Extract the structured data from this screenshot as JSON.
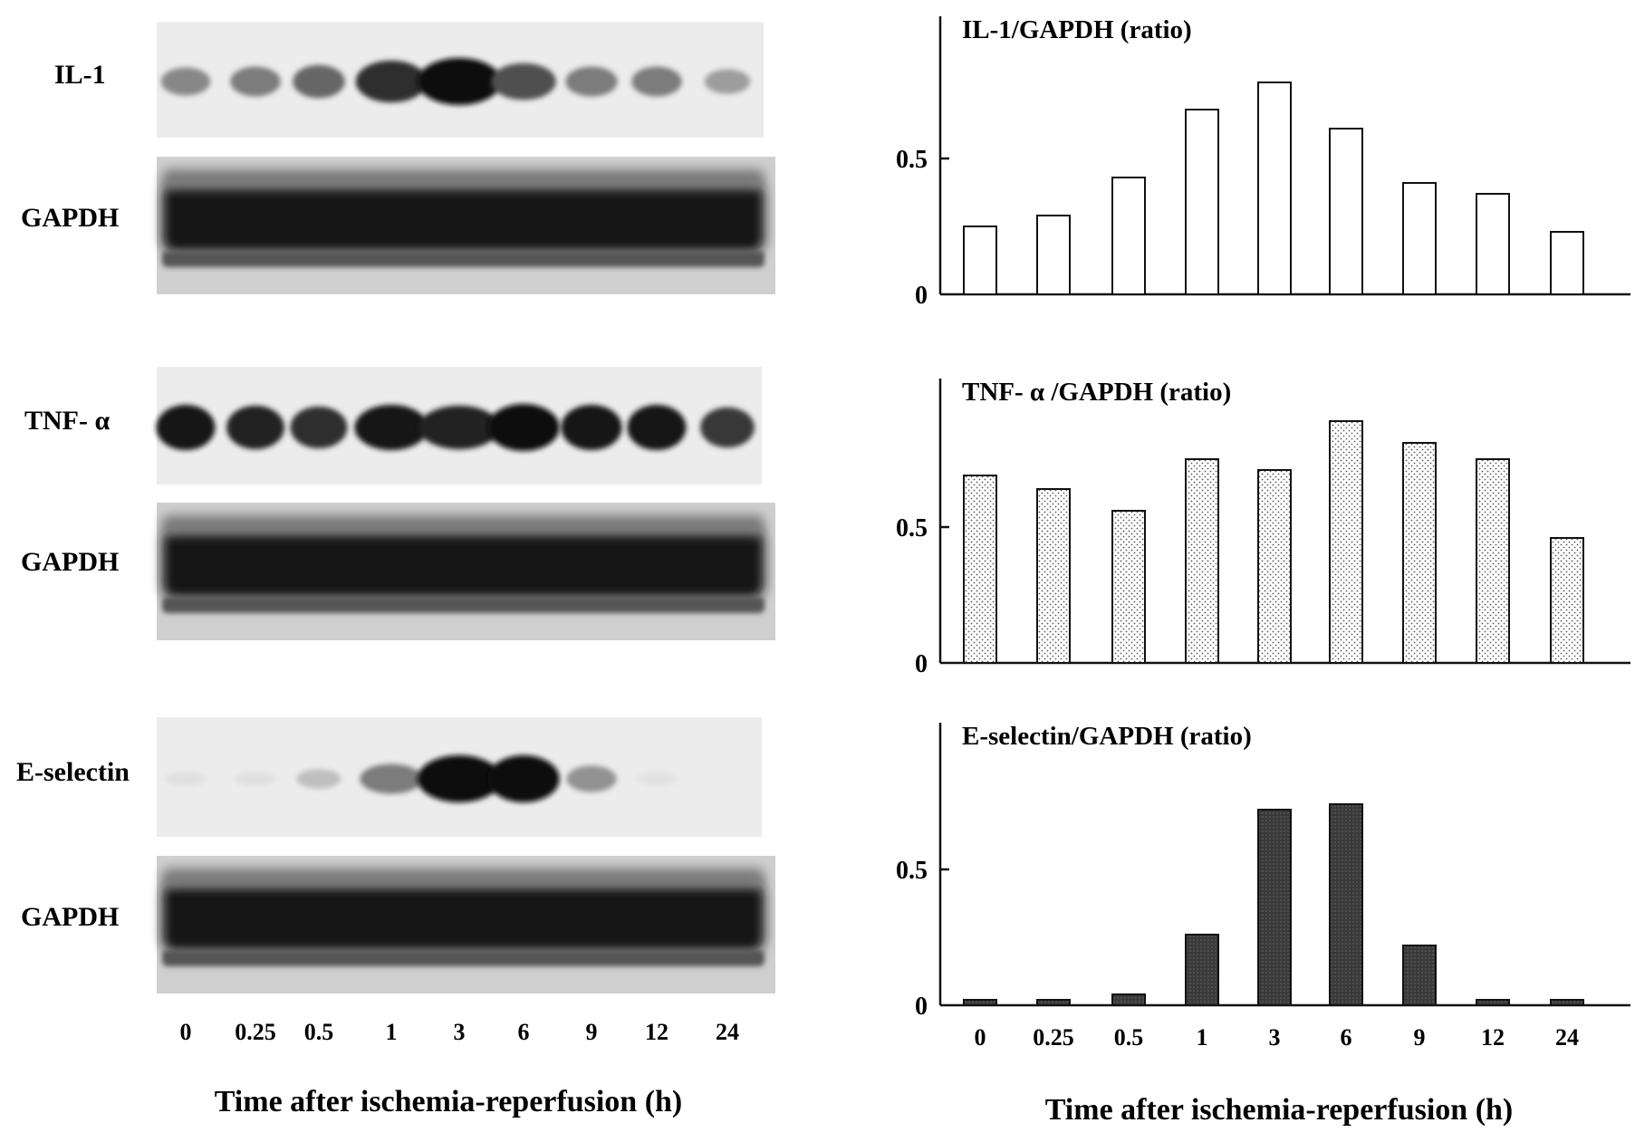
{
  "left_panel": {
    "blots": [
      {
        "label": "IL-1",
        "kind": "target",
        "intensity": [
          0.45,
          0.5,
          0.6,
          0.85,
          1.0,
          0.7,
          0.5,
          0.5,
          0.35
        ]
      },
      {
        "label": "GAPDH",
        "kind": "gapdh"
      },
      {
        "label": "TNF- α",
        "kind": "target",
        "intensity": [
          0.95,
          0.9,
          0.85,
          0.95,
          0.9,
          1.0,
          0.95,
          0.95,
          0.8
        ]
      },
      {
        "label": "GAPDH",
        "kind": "gapdh"
      },
      {
        "label": "E-selectin",
        "kind": "target",
        "intensity": [
          0.05,
          0.05,
          0.2,
          0.5,
          1.0,
          1.0,
          0.4,
          0.04,
          0.0
        ]
      },
      {
        "label": "GAPDH",
        "kind": "gapdh"
      }
    ],
    "time_labels": [
      "0",
      "0.25",
      "0.5",
      "1",
      "3",
      "6",
      "9",
      "12",
      "24"
    ],
    "xlabel": "Time after ischemia-reperfusion (h)"
  },
  "chart_data": [
    {
      "type": "bar",
      "title": "IL-1/GAPDH (ratio)",
      "categories": [
        "0",
        "0.25",
        "0.5",
        "1",
        "3",
        "6",
        "9",
        "12",
        "24"
      ],
      "values": [
        0.25,
        0.29,
        0.43,
        0.68,
        0.78,
        0.61,
        0.41,
        0.37,
        0.23
      ],
      "ylim": [
        0,
        1.0
      ],
      "yticks": [
        "0",
        "0.5"
      ],
      "fill": "white"
    },
    {
      "type": "bar",
      "title": "TNF- α /GAPDH (ratio)",
      "categories": [
        "0",
        "0.25",
        "0.5",
        "1",
        "3",
        "6",
        "9",
        "12",
        "24"
      ],
      "values": [
        0.69,
        0.64,
        0.56,
        0.75,
        0.71,
        0.89,
        0.81,
        0.75,
        0.46
      ],
      "ylim": [
        0,
        1.0
      ],
      "yticks": [
        "0",
        "0.5"
      ],
      "fill": "dotted"
    },
    {
      "type": "bar",
      "title": "E-selectin/GAPDH (ratio)",
      "categories": [
        "0",
        "0.25",
        "0.5",
        "1",
        "3",
        "6",
        "9",
        "12",
        "24"
      ],
      "values": [
        0.02,
        0.02,
        0.04,
        0.26,
        0.72,
        0.74,
        0.22,
        0.02,
        0.02
      ],
      "ylim": [
        0,
        1.0
      ],
      "yticks": [
        "0",
        "0.5"
      ],
      "fill": "dark",
      "xticks_shown": true
    }
  ],
  "right_xlabel": "Time after ischemia-reperfusion (h)"
}
